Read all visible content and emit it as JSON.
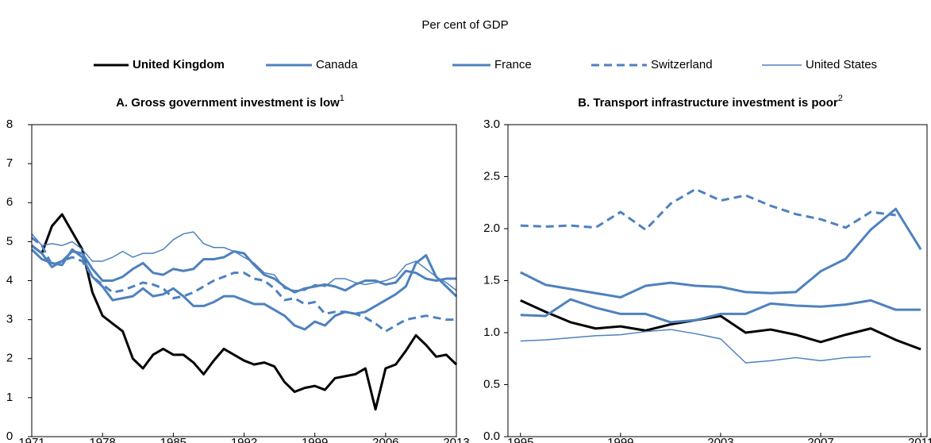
{
  "subtitle": "Per cent of GDP",
  "chart_data": [
    {
      "type": "line",
      "title": "A. Gross government investment is low",
      "title_note": "1",
      "x": [
        1971,
        1972,
        1973,
        1974,
        1975,
        1976,
        1977,
        1978,
        1979,
        1980,
        1981,
        1982,
        1983,
        1984,
        1985,
        1986,
        1987,
        1988,
        1989,
        1990,
        1991,
        1992,
        1993,
        1994,
        1995,
        1996,
        1997,
        1998,
        1999,
        2000,
        2001,
        2002,
        2003,
        2004,
        2005,
        2006,
        2007,
        2008,
        2009,
        2010,
        2011,
        2012,
        2013
      ],
      "xlim": [
        1971,
        2013
      ],
      "xticks": [
        1971,
        1978,
        1985,
        1992,
        1999,
        2006,
        2013
      ],
      "ylim": [
        0,
        8
      ],
      "yticks": [
        0,
        1,
        2,
        3,
        4,
        5,
        6,
        7,
        8
      ],
      "series": [
        {
          "name": "United Kingdom",
          "color": "#000000",
          "width": 3,
          "dash": false,
          "bold": true,
          "values": [
            4.9,
            4.7,
            5.4,
            5.7,
            5.25,
            4.8,
            3.7,
            3.1,
            2.9,
            2.7,
            2.0,
            1.75,
            2.1,
            2.25,
            2.1,
            2.1,
            1.9,
            1.6,
            1.95,
            2.25,
            2.1,
            1.95,
            1.85,
            1.9,
            1.8,
            1.4,
            1.15,
            1.25,
            1.3,
            1.2,
            1.5,
            1.55,
            1.6,
            1.75,
            0.7,
            1.75,
            1.85,
            2.2,
            2.6,
            2.35,
            2.05,
            2.1,
            1.85
          ]
        },
        {
          "name": "Canada",
          "color": "#4f81bd",
          "width": 3,
          "dash": false,
          "bold": false,
          "values": [
            4.9,
            4.7,
            4.35,
            4.5,
            4.75,
            4.7,
            4.3,
            4.0,
            4.0,
            4.1,
            4.3,
            4.45,
            4.2,
            4.15,
            4.3,
            4.25,
            4.3,
            4.55,
            4.55,
            4.6,
            4.75,
            4.7,
            4.4,
            4.15,
            4.05,
            3.85,
            3.7,
            3.8,
            3.85,
            3.9,
            3.85,
            3.75,
            3.9,
            4.0,
            4.0,
            3.9,
            3.95,
            4.25,
            4.2,
            4.05,
            4.0,
            4.05,
            4.05
          ]
        },
        {
          "name": "France",
          "color": "#4f81bd",
          "width": 3,
          "dash": false,
          "bold": false,
          "values": [
            4.8,
            4.55,
            4.45,
            4.4,
            4.8,
            4.6,
            4.1,
            3.85,
            3.5,
            3.55,
            3.6,
            3.8,
            3.6,
            3.65,
            3.8,
            3.6,
            3.35,
            3.35,
            3.45,
            3.6,
            3.6,
            3.5,
            3.4,
            3.4,
            3.25,
            3.1,
            2.85,
            2.75,
            2.95,
            2.85,
            3.1,
            3.2,
            3.15,
            3.2,
            3.35,
            3.5,
            3.65,
            3.85,
            4.45,
            4.65,
            4.1,
            3.85,
            3.6
          ]
        },
        {
          "name": "Switzerland",
          "color": "#4f81bd",
          "width": 3,
          "dash": true,
          "bold": false,
          "values": [
            5.1,
            4.9,
            4.4,
            4.5,
            4.6,
            4.5,
            4.1,
            3.9,
            3.7,
            3.75,
            3.85,
            3.95,
            3.9,
            3.8,
            3.55,
            3.6,
            3.7,
            3.85,
            4.0,
            4.1,
            4.2,
            4.2,
            4.05,
            4.0,
            3.8,
            3.5,
            3.55,
            3.4,
            3.45,
            3.15,
            3.2,
            3.2,
            3.15,
            3.05,
            2.9,
            2.7,
            2.85,
            3.0,
            3.05,
            3.1,
            3.05,
            3.0,
            3.0
          ]
        },
        {
          "name": "United States",
          "color": "#4f81bd",
          "width": 1.5,
          "dash": false,
          "bold": false,
          "values": [
            5.2,
            4.9,
            4.95,
            4.9,
            5.0,
            4.8,
            4.5,
            4.5,
            4.6,
            4.75,
            4.6,
            4.7,
            4.7,
            4.8,
            5.05,
            5.2,
            5.25,
            4.95,
            4.85,
            4.85,
            4.75,
            4.6,
            4.45,
            4.2,
            4.15,
            3.8,
            3.75,
            3.75,
            3.9,
            3.85,
            4.05,
            4.05,
            3.95,
            3.9,
            3.95,
            4.0,
            4.1,
            4.4,
            4.5,
            4.3,
            4.1,
            3.95,
            3.75
          ]
        }
      ]
    },
    {
      "type": "line",
      "title": "B. Transport infrastructure investment is poor",
      "title_note": "2",
      "x": [
        1995,
        1996,
        1997,
        1998,
        1999,
        2000,
        2001,
        2002,
        2003,
        2004,
        2005,
        2006,
        2007,
        2008,
        2009,
        2010,
        2011
      ],
      "xlim": [
        1994.5,
        2011.25
      ],
      "xticks": [
        1995,
        1999,
        2003,
        2007,
        2011
      ],
      "ylim": [
        0,
        3
      ],
      "yticks": [
        {
          "value": 0,
          "label": "0.0"
        },
        0.5,
        {
          "value": 1,
          "label": "1.0"
        },
        1.5,
        {
          "value": 2,
          "label": "2.0"
        },
        2.5,
        {
          "value": 3,
          "label": "3.0"
        }
      ],
      "series": [
        {
          "name": "United Kingdom",
          "color": "#000000",
          "width": 3,
          "dash": false,
          "bold": true,
          "values": [
            1.31,
            1.2,
            1.1,
            1.04,
            1.06,
            1.02,
            1.08,
            1.12,
            1.16,
            1.0,
            1.03,
            0.98,
            0.91,
            0.98,
            1.04,
            0.93,
            0.84
          ]
        },
        {
          "name": "Canada",
          "color": "#4f81bd",
          "width": 3,
          "dash": false,
          "bold": false,
          "values": [
            1.58,
            1.46,
            1.42,
            1.38,
            1.34,
            1.45,
            1.48,
            1.45,
            1.44,
            1.39,
            1.38,
            1.39,
            1.59,
            1.71,
            1.99,
            2.19,
            1.8
          ]
        },
        {
          "name": "France",
          "color": "#4f81bd",
          "width": 3,
          "dash": false,
          "bold": false,
          "values": [
            1.17,
            1.16,
            1.32,
            1.24,
            1.18,
            1.18,
            1.1,
            1.12,
            1.18,
            1.18,
            1.28,
            1.26,
            1.25,
            1.27,
            1.31,
            1.22,
            1.22
          ]
        },
        {
          "name": "Switzerland",
          "color": "#4f81bd",
          "width": 3,
          "dash": true,
          "bold": false,
          "values": [
            2.03,
            2.02,
            2.03,
            2.01,
            2.16,
            1.99,
            2.24,
            2.38,
            2.27,
            2.32,
            2.22,
            2.14,
            2.09,
            2.01,
            2.16,
            2.13,
            null
          ]
        },
        {
          "name": "United States",
          "color": "#4f81bd",
          "width": 1.5,
          "dash": false,
          "bold": false,
          "values": [
            0.92,
            0.93,
            0.95,
            0.97,
            0.98,
            1.01,
            1.03,
            0.99,
            0.94,
            0.71,
            0.73,
            0.76,
            0.73,
            0.76,
            0.77,
            null,
            null
          ]
        }
      ]
    }
  ]
}
